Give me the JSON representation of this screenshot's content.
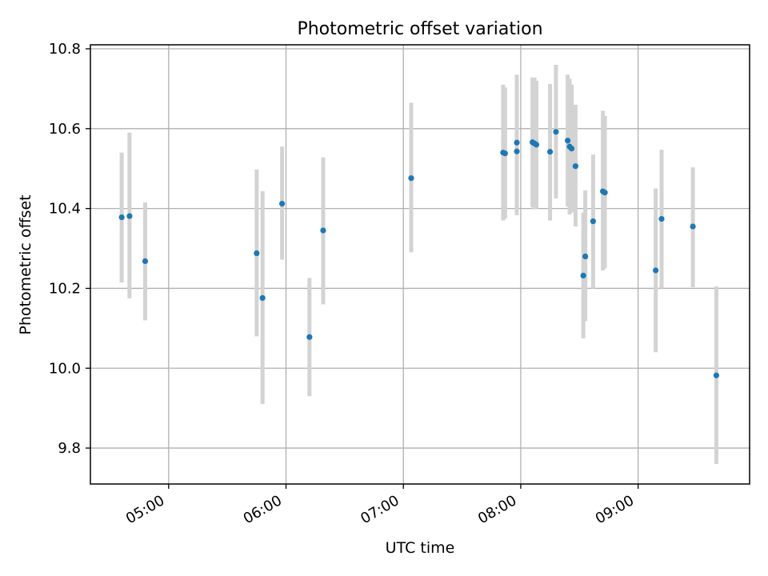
{
  "chart_data": {
    "type": "scatter",
    "title": "Photometric offset variation",
    "xlabel": "UTC time",
    "ylabel": "Photometric offset",
    "x_unit": "UTC time (HH:MM)",
    "xlim": [
      "04:20",
      "09:57"
    ],
    "ylim": [
      9.71,
      10.81
    ],
    "x_ticks": [
      "05:00",
      "06:00",
      "07:00",
      "08:00",
      "09:00"
    ],
    "y_ticks": [
      "9.8",
      "10.0",
      "10.2",
      "10.4",
      "10.6",
      "10.8"
    ],
    "grid": true,
    "legend": "none",
    "colors": {
      "point": "#1f77b4",
      "error_bar": "#d3d3d3",
      "grid": "#b0b0b0"
    },
    "points": [
      {
        "x": "04:36",
        "y": 10.378,
        "err_low": 10.215,
        "err_high": 10.54
      },
      {
        "x": "04:40",
        "y": 10.381,
        "err_low": 10.175,
        "err_high": 10.59
      },
      {
        "x": "04:48",
        "y": 10.268,
        "err_low": 10.12,
        "err_high": 10.415
      },
      {
        "x": "05:45",
        "y": 10.288,
        "err_low": 10.08,
        "err_high": 10.498
      },
      {
        "x": "05:48",
        "y": 10.176,
        "err_low": 9.91,
        "err_high": 10.443
      },
      {
        "x": "05:58",
        "y": 10.412,
        "err_low": 10.272,
        "err_high": 10.555
      },
      {
        "x": "06:12",
        "y": 10.078,
        "err_low": 9.93,
        "err_high": 10.226
      },
      {
        "x": "06:19",
        "y": 10.345,
        "err_low": 10.16,
        "err_high": 10.528
      },
      {
        "x": "07:04",
        "y": 10.476,
        "err_low": 10.29,
        "err_high": 10.665
      },
      {
        "x": "07:51",
        "y": 10.54,
        "err_low": 10.37,
        "err_high": 10.71
      },
      {
        "x": "07:52",
        "y": 10.538,
        "err_low": 10.375,
        "err_high": 10.703
      },
      {
        "x": "07:58",
        "y": 10.565,
        "err_low": 10.395,
        "err_high": 10.735
      },
      {
        "x": "07:58",
        "y": 10.543,
        "err_low": 10.383,
        "err_high": 10.703
      },
      {
        "x": "08:06",
        "y": 10.566,
        "err_low": 10.403,
        "err_high": 10.728
      },
      {
        "x": "08:07",
        "y": 10.563,
        "err_low": 10.398,
        "err_high": 10.728
      },
      {
        "x": "08:08",
        "y": 10.56,
        "err_low": 10.4,
        "err_high": 10.72
      },
      {
        "x": "08:15",
        "y": 10.542,
        "err_low": 10.37,
        "err_high": 10.712
      },
      {
        "x": "08:18",
        "y": 10.592,
        "err_low": 10.425,
        "err_high": 10.76
      },
      {
        "x": "08:24",
        "y": 10.57,
        "err_low": 10.405,
        "err_high": 10.735
      },
      {
        "x": "08:25",
        "y": 10.555,
        "err_low": 10.385,
        "err_high": 10.725
      },
      {
        "x": "08:26",
        "y": 10.55,
        "err_low": 10.39,
        "err_high": 10.71
      },
      {
        "x": "08:28",
        "y": 10.506,
        "err_low": 10.355,
        "err_high": 10.66
      },
      {
        "x": "08:32",
        "y": 10.232,
        "err_low": 10.075,
        "err_high": 10.39
      },
      {
        "x": "08:33",
        "y": 10.28,
        "err_low": 10.118,
        "err_high": 10.445
      },
      {
        "x": "08:37",
        "y": 10.368,
        "err_low": 10.2,
        "err_high": 10.535
      },
      {
        "x": "08:42",
        "y": 10.443,
        "err_low": 10.245,
        "err_high": 10.645
      },
      {
        "x": "08:43",
        "y": 10.44,
        "err_low": 10.25,
        "err_high": 10.632
      },
      {
        "x": "09:09",
        "y": 10.245,
        "err_low": 10.04,
        "err_high": 10.45
      },
      {
        "x": "09:12",
        "y": 10.374,
        "err_low": 10.2,
        "err_high": 10.547
      },
      {
        "x": "09:28",
        "y": 10.355,
        "err_low": 10.203,
        "err_high": 10.503
      },
      {
        "x": "09:40",
        "y": 9.982,
        "err_low": 9.76,
        "err_high": 10.205
      }
    ]
  }
}
